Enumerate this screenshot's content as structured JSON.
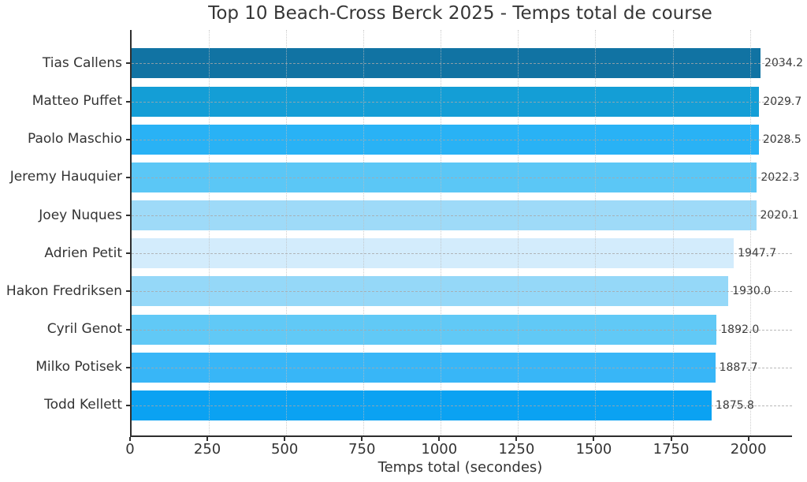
{
  "chart_data": {
    "type": "bar",
    "orientation": "horizontal",
    "title": "Top 10 Beach-Cross Berck 2025 - Temps total de course",
    "xlabel": "Temps total (secondes)",
    "categories": [
      "Tias Callens",
      "Matteo Puffet",
      "Paolo Maschio",
      "Jeremy Hauquier",
      "Joey Nuques",
      "Adrien Petit",
      "Hakon Fredriksen",
      "Cyril Genot",
      "Milko Potisek",
      "Todd Kellett"
    ],
    "values": [
      2034.2,
      2029.7,
      2028.5,
      2022.3,
      2020.1,
      1947.7,
      1930.0,
      1892.0,
      1887.7,
      1875.8
    ],
    "value_labels": [
      "2034.2",
      "2029.7",
      "2028.5",
      "2022.3",
      "2020.1",
      "1947.7",
      "1930.0",
      "1892.0",
      "1887.7",
      "1875.8"
    ],
    "bar_colors": [
      "#1173a3",
      "#149ed6",
      "#29b2f5",
      "#5bc7f6",
      "#9edaf8",
      "#d3ecfc",
      "#95d8f8",
      "#61c9f6",
      "#38b6f7",
      "#0ba2f2"
    ],
    "xticks": [
      0,
      250,
      500,
      750,
      1000,
      1250,
      1500,
      1750,
      2000
    ],
    "xlim": [
      0,
      2136
    ],
    "grid": {
      "x_gridline_style": "dotted",
      "y_gridline_style": "dashed",
      "grid_on": true
    },
    "legend": "none",
    "colors": {
      "background": "#ffffff",
      "spine": "#2e2e2e",
      "axis_text": "#333333",
      "value_text": "#3c3c3c",
      "title_text": "#363636",
      "gridline": "#bebebe"
    }
  }
}
